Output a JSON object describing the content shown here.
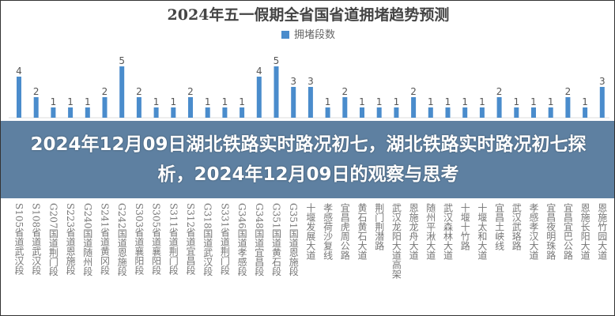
{
  "banner": {
    "headline": "2024年12月09日湖北铁路实时路况初七，湖北铁路实时路况初七探析，2024年12月09日的观察与思考"
  },
  "chart_data": {
    "type": "bar",
    "title": "2024年五一假期全省国省道拥堵趋势预测",
    "legend_position": "top",
    "grid": false,
    "bar_color": "#4a8ccc",
    "series": [
      {
        "name": "拥堵段数",
        "values": [
          4,
          2,
          1,
          1,
          1,
          2,
          5,
          2,
          1,
          1,
          2,
          1,
          1,
          1,
          4,
          5,
          3,
          3,
          1,
          2,
          1,
          1,
          1,
          2,
          1,
          1,
          1,
          1,
          2,
          1,
          1,
          1,
          2,
          1,
          3
        ]
      }
    ],
    "categories": [
      "S105省道武汉段",
      "S108省道武汉段",
      "G207国道荆门段",
      "S223省道恩施段",
      "G240国道随州段",
      "S241省道黄冈段",
      "G242国道恩施段",
      "S303省道襄阳段",
      "S305省道襄阳段",
      "S311省道荆门段",
      "S312省道宜昌段",
      "G318国道武汉段",
      "S331省道荆门段",
      "G346国道孝感段",
      "G348国道宜昌段",
      "G351国道黄石段",
      "G351国道恩施段",
      "十堰发展大道",
      "孝感荷沙复线",
      "宜昌虎周公路",
      "黄石黄石大道",
      "荆门荆潜路",
      "武汉龙阳大道高架",
      "恩施龙舟大道",
      "随州平湫大道",
      "武汉森林大道",
      "十堰十竹路",
      "十堰太和大道",
      "宜昌土峡线",
      "武汉武珞路",
      "孝感孝汉大道",
      "宜昌夜明珠路",
      "宜昌宜巴公路",
      "恩施长阳大道",
      "恩施竹园大道"
    ],
    "ylim": [
      0,
      5
    ]
  }
}
